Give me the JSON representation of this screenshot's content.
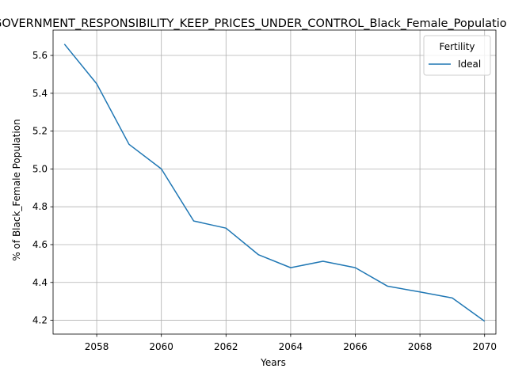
{
  "chart_data": {
    "type": "line",
    "title": "GOVERNMENT_RESPONSIBILITY_KEEP_PRICES_UNDER_CONTROL_Black_Female_Population",
    "xlabel": "Years",
    "ylabel": "% of Black_Female Population",
    "xlim": [
      2056.65,
      2070.35
    ],
    "ylim": [
      4.127,
      5.734
    ],
    "xticks": [
      2058,
      2060,
      2062,
      2064,
      2066,
      2068,
      2070
    ],
    "yticks": [
      4.2,
      4.4,
      4.6,
      4.8,
      5.0,
      5.2,
      5.4,
      5.6
    ],
    "grid": true,
    "legend": {
      "title": "Fertility",
      "placement": "top-right"
    },
    "series": [
      {
        "name": "Ideal",
        "color": "#1f77b4",
        "x": [
          2057,
          2058,
          2059,
          2060,
          2061,
          2062,
          2063,
          2064,
          2065,
          2066,
          2067,
          2068,
          2069,
          2070
        ],
        "y": [
          5.66,
          5.45,
          5.13,
          5.0,
          4.725,
          4.687,
          4.547,
          4.478,
          4.512,
          4.478,
          4.38,
          4.35,
          4.318,
          4.195
        ]
      }
    ]
  }
}
